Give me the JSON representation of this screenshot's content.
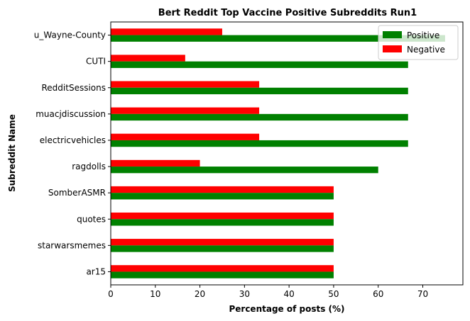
{
  "chart_data": {
    "type": "bar",
    "orientation": "horizontal",
    "title": "Bert Reddit Top Vaccine Positive Subreddits Run1",
    "xlabel": "Percentage of posts (%)",
    "ylabel": "Subreddit Name",
    "xlim": [
      0,
      79
    ],
    "xticks": [
      0,
      10,
      20,
      30,
      40,
      50,
      60,
      70
    ],
    "grid": false,
    "legend_position": "top-right",
    "categories": [
      "u_Wayne-County",
      "CUTI",
      "RedditSessions",
      "muacjdiscussion",
      "electricvehicles",
      "ragdolls",
      "SomberASMR",
      "quotes",
      "starwarsmemes",
      "ar15"
    ],
    "series": [
      {
        "name": "Positive",
        "color": "#008000",
        "values": [
          75,
          66.7,
          66.7,
          66.7,
          66.7,
          60,
          50,
          50,
          50,
          50
        ]
      },
      {
        "name": "Negative",
        "color": "#ff0000",
        "values": [
          25,
          16.7,
          33.3,
          33.3,
          33.3,
          20,
          50,
          50,
          50,
          50
        ]
      }
    ]
  }
}
